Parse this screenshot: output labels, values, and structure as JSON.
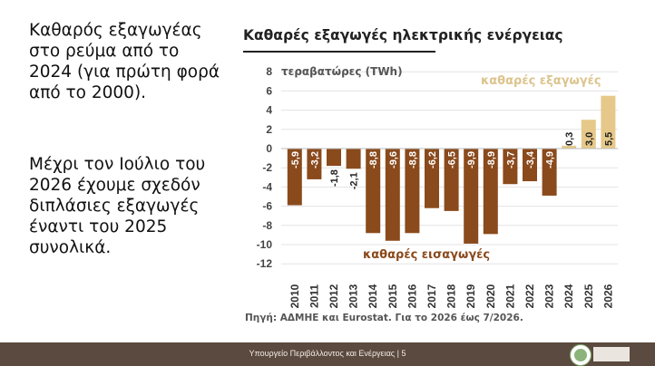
{
  "slide": {
    "headline": "Καθαρός εξαγωγέας στο ρεύμα από το 2024 (για πρώτη φορά από το 2000).",
    "subline": "Μέχρι τον Ιούλιο του 2026 έχουμε σχεδόν διπλάσιες εξαγωγές έναντι του 2025 συνολικά.",
    "footer": "Υπουργείο Περιβάλλοντος και Ενέργειας | 5",
    "source": "Πηγή: ΑΔΜΗΕ και Eurostat. Για το 2026 έως 7/2026."
  },
  "colors": {
    "imports": "#8a4a1c",
    "exports": "#e6c98a",
    "footer": "#5b4a3f"
  },
  "chart_data": {
    "type": "bar",
    "title": "Καθαρές εξαγωγές ηλεκτρικής ενέργειας",
    "ylabel": "τεραβατώρες (TWh)",
    "categories": [
      "2010",
      "2011",
      "2012",
      "2013",
      "2014",
      "2015",
      "2016",
      "2017",
      "2018",
      "2019",
      "2020",
      "2021",
      "2022",
      "2023",
      "2024",
      "2025",
      "2026"
    ],
    "values": [
      -5.9,
      -3.2,
      -1.8,
      -2.1,
      -8.8,
      -9.6,
      -8.8,
      -6.2,
      -6.5,
      -9.9,
      -8.9,
      -3.7,
      -3.4,
      -4.9,
      0.3,
      3.0,
      5.5
    ],
    "labels": [
      "-5,9",
      "-3,2",
      "-1,8",
      "-2,1",
      "-8,8",
      "-9,6",
      "-8,8",
      "-6,2",
      "-6,5",
      "-9,9",
      "-8,9",
      "-3,7",
      "-3,4",
      "-4,9",
      "0,3",
      "3,0",
      "5,5"
    ],
    "yticks": [
      "8",
      "6",
      "4",
      "2",
      "0",
      "-2",
      "-4",
      "-6",
      "-8",
      "-10",
      "-12"
    ],
    "ylim": [
      -12,
      8
    ],
    "annotations": {
      "exports": "καθαρές εξαγωγές",
      "imports": "καθαρές εισαγωγές"
    },
    "grid": true
  }
}
